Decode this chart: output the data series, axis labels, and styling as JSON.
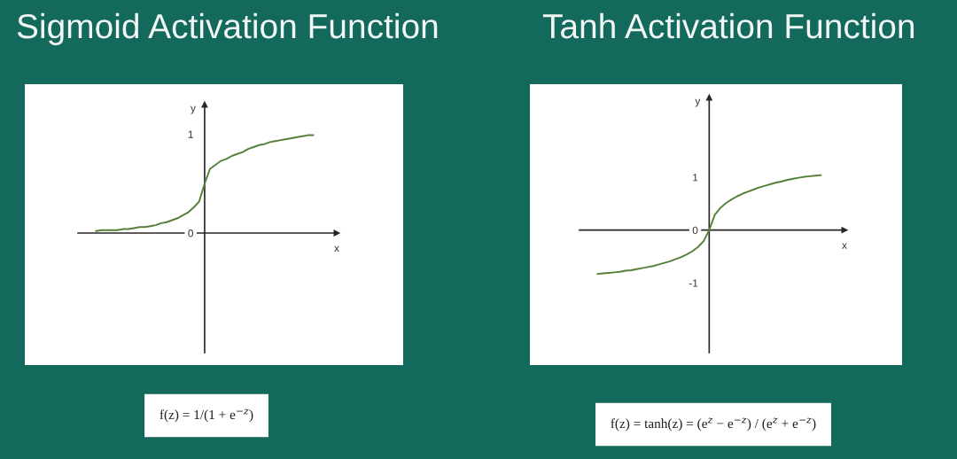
{
  "chart_data": [
    {
      "type": "line",
      "title": "Sigmoid Activation Function",
      "xlabel": "x",
      "ylabel": "y",
      "categories": [
        null,
        null,
        null,
        null,
        null,
        null,
        null,
        null,
        null,
        null,
        null,
        null,
        null,
        null,
        null,
        null,
        null,
        null,
        null,
        null,
        null,
        null,
        null,
        null,
        null,
        null,
        null,
        null,
        null,
        null,
        null,
        null,
        null,
        null,
        null,
        null,
        null,
        null,
        null,
        null,
        null
      ],
      "series": [
        {
          "color": "#56803a",
          "values": [
            0.02,
            0.03,
            0.03,
            0.03,
            0.03,
            0.04,
            0.04,
            0.05,
            0.06,
            0.06,
            0.07,
            0.08,
            0.1,
            0.11,
            0.13,
            0.15,
            0.18,
            0.21,
            0.26,
            0.32,
            0.5,
            0.65,
            0.69,
            0.73,
            0.75,
            0.78,
            0.8,
            0.82,
            0.85,
            0.87,
            0.89,
            0.9,
            0.92,
            0.93,
            0.94,
            0.95,
            0.96,
            0.97,
            0.98,
            0.99,
            0.99
          ]
        }
      ],
      "ylim": [
        -1.21,
        1.3
      ],
      "yticks": [
        0,
        1
      ],
      "tick_labels": "y",
      "annotations": [
        "f(z) = 1/(1 + e$^{−z}$)"
      ]
    },
    {
      "type": "line",
      "title": "Tanh Activation Function",
      "xlabel": "x",
      "ylabel": "y",
      "categories": [
        null,
        null,
        null,
        null,
        null,
        null,
        null,
        null,
        null,
        null,
        null,
        null,
        null,
        null,
        null,
        null,
        null,
        null,
        null,
        null,
        null,
        null,
        null,
        null,
        null,
        null,
        null,
        null,
        null,
        null,
        null,
        null,
        null,
        null,
        null,
        null,
        null,
        null,
        null,
        null,
        null
      ],
      "series": [
        {
          "color": "#56803a",
          "values": [
            -0.83,
            -0.82,
            -0.81,
            -0.8,
            -0.79,
            -0.77,
            -0.76,
            -0.74,
            -0.72,
            -0.7,
            -0.68,
            -0.65,
            -0.62,
            -0.59,
            -0.55,
            -0.51,
            -0.46,
            -0.4,
            -0.32,
            -0.21,
            0,
            0.29,
            0.42,
            0.51,
            0.58,
            0.64,
            0.69,
            0.73,
            0.77,
            0.81,
            0.84,
            0.87,
            0.9,
            0.92,
            0.95,
            0.97,
            0.99,
            1.01,
            1.02,
            1.03,
            1.04
          ]
        }
      ],
      "ylim": [
        -2.32,
        2.51
      ],
      "yticks": [
        -1,
        0,
        1
      ],
      "tick_labels": "y",
      "annotations": [
        "f(z) = tanh(z) = (e$^{z}$ − e$^{−z}$) / (e$^{z}$ + e$^{−z}$)"
      ]
    }
  ]
}
